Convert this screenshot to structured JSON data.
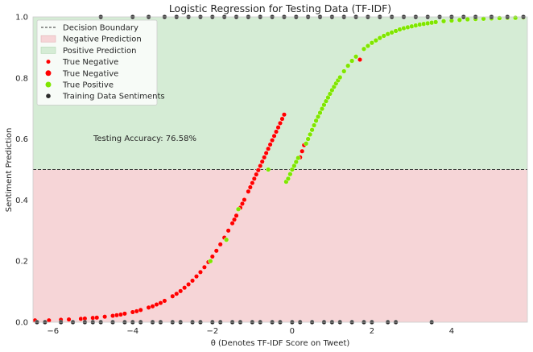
{
  "chart_data": {
    "type": "scatter",
    "title": "Logistic Regression for Testing Data (TF-IDF)",
    "xlabel": "θ (Denotes TF-IDF Score on Tweet)",
    "ylabel": "Sentiment Prediction",
    "xlim": [
      -6.5,
      5.9
    ],
    "ylim": [
      0,
      1.0
    ],
    "xticks": [
      -6,
      -4,
      -2,
      0,
      2,
      4
    ],
    "xtick_labels": [
      "−6",
      "−4",
      "−2",
      "0",
      "2",
      "4"
    ],
    "yticks": [
      0.0,
      0.2,
      0.4,
      0.6,
      0.8,
      1.0
    ],
    "ytick_labels": [
      "0.0",
      "0.2",
      "0.4",
      "0.6",
      "0.8",
      "1.0"
    ],
    "decision_boundary": 0.5,
    "grid": false,
    "legend_placement": "top-left",
    "annotation": "Testing Accuracy: 76.58%",
    "colors": {
      "negative_region": "#f6d5d7",
      "positive_region": "#d5ecd5",
      "true_negative": "#ff0000",
      "true_positive": "#7fe600",
      "training": "#2b2b2b",
      "boundary": "#333333"
    },
    "legend": [
      {
        "label": "Decision Boundary",
        "kind": "dashed-line"
      },
      {
        "label": "Negative Prediction",
        "kind": "patch-negative"
      },
      {
        "label": "Positive Prediction",
        "kind": "patch-positive"
      },
      {
        "label": "True Negative",
        "kind": "dot-small-red"
      },
      {
        "label": "True Negative",
        "kind": "dot-red"
      },
      {
        "label": "True Positive",
        "kind": "dot-green"
      },
      {
        "label": "Training Data Sentiments",
        "kind": "dot-dark"
      }
    ],
    "series": [
      {
        "role": "true_negative",
        "x": [
          -6.45,
          -6.1,
          -5.8,
          -5.6,
          -5.3,
          -5.2,
          -5.0,
          -4.9,
          -4.7,
          -4.5,
          -4.4,
          -4.3,
          -4.2,
          -4.0,
          -3.9,
          -3.8,
          -3.6,
          -3.5,
          -3.4,
          -3.3,
          -3.2,
          -3.0,
          -2.9,
          -2.8,
          -2.7,
          -2.6,
          -2.5,
          -2.4,
          -2.3,
          -2.2,
          -2.1,
          -2.0,
          -1.9,
          -1.8,
          -1.7,
          -1.6,
          -1.5,
          -1.45,
          -1.4,
          -1.3,
          -1.25,
          -1.2,
          -1.1,
          -1.05,
          -1.0,
          -0.95,
          -0.9,
          -0.85,
          -0.8,
          -0.75,
          -0.7,
          -0.65,
          -0.6,
          -0.55,
          -0.5,
          -0.45,
          -0.4,
          -0.35,
          -0.3,
          -0.25,
          -0.2,
          0.2,
          0.25,
          0.3,
          1.7
        ],
        "y": [
          0.006,
          0.006,
          0.008,
          0.009,
          0.011,
          0.012,
          0.014,
          0.015,
          0.018,
          0.021,
          0.023,
          0.025,
          0.028,
          0.033,
          0.036,
          0.04,
          0.048,
          0.052,
          0.058,
          0.063,
          0.07,
          0.085,
          0.093,
          0.102,
          0.113,
          0.124,
          0.136,
          0.15,
          0.164,
          0.18,
          0.197,
          0.215,
          0.234,
          0.255,
          0.277,
          0.3,
          0.324,
          0.336,
          0.349,
          0.375,
          0.388,
          0.401,
          0.428,
          0.442,
          0.456,
          0.47,
          0.484,
          0.498,
          0.512,
          0.526,
          0.54,
          0.554,
          0.568,
          0.582,
          0.596,
          0.61,
          0.624,
          0.638,
          0.652,
          0.666,
          0.68,
          0.54,
          0.56,
          0.58,
          0.86
        ]
      },
      {
        "role": "true_positive",
        "x": [
          -2.05,
          -1.65,
          -1.35,
          -0.6,
          -0.15,
          -0.1,
          -0.05,
          0.0,
          0.05,
          0.1,
          0.15,
          0.35,
          0.4,
          0.45,
          0.5,
          0.55,
          0.6,
          0.65,
          0.7,
          0.75,
          0.8,
          0.85,
          0.9,
          0.95,
          1.0,
          1.05,
          1.1,
          1.15,
          1.2,
          1.3,
          1.4,
          1.5,
          1.6,
          1.8,
          1.9,
          2.0,
          2.1,
          2.2,
          2.3,
          2.4,
          2.5,
          2.6,
          2.7,
          2.8,
          2.9,
          3.0,
          3.1,
          3.2,
          3.3,
          3.4,
          3.5,
          3.6,
          3.8,
          4.0,
          4.2,
          4.4,
          4.6,
          4.8,
          5.0,
          5.2,
          5.4,
          5.6,
          5.8
        ],
        "y": [
          0.2,
          0.27,
          0.37,
          0.5,
          0.46,
          0.47,
          0.485,
          0.5,
          0.512,
          0.525,
          0.538,
          0.585,
          0.6,
          0.615,
          0.63,
          0.645,
          0.66,
          0.673,
          0.686,
          0.699,
          0.712,
          0.724,
          0.736,
          0.748,
          0.76,
          0.771,
          0.782,
          0.792,
          0.802,
          0.822,
          0.84,
          0.856,
          0.87,
          0.895,
          0.905,
          0.915,
          0.923,
          0.931,
          0.938,
          0.944,
          0.949,
          0.954,
          0.959,
          0.963,
          0.966,
          0.969,
          0.972,
          0.975,
          0.977,
          0.979,
          0.981,
          0.983,
          0.986,
          0.988,
          0.99,
          0.992,
          0.993,
          0.994,
          0.995,
          0.996,
          0.997,
          0.997,
          0.998
        ]
      },
      {
        "role": "training",
        "x": [
          -6.4,
          -6.2,
          -5.8,
          -5.5,
          -5.2,
          -5.0,
          -4.8,
          -4.5,
          -4.2,
          -4.0,
          -3.8,
          -3.5,
          -3.3,
          -3.0,
          -2.8,
          -2.5,
          -2.3,
          -2.0,
          -1.8,
          -1.5,
          -1.3,
          -1.0,
          -0.8,
          -0.5,
          -0.3,
          0.0,
          0.2,
          0.5,
          0.8,
          1.0,
          1.2,
          1.5,
          1.8,
          2.0,
          2.4,
          2.6,
          3.5,
          -4.8,
          -4.0,
          -3.6,
          -3.2,
          -2.9,
          -2.6,
          -2.3,
          -2.0,
          -1.7,
          -1.4,
          -1.1,
          -0.8,
          -0.5,
          -0.2,
          0.1,
          0.4,
          0.7,
          1.0,
          1.3,
          1.6,
          1.9,
          2.2,
          2.5,
          2.8,
          3.1,
          3.4,
          3.7,
          4.0,
          4.3,
          4.6,
          5.0,
          5.4,
          5.8
        ],
        "y": [
          0,
          0,
          0,
          0,
          0,
          0,
          0,
          0,
          0,
          0,
          0,
          0,
          0,
          0,
          0,
          0,
          0,
          0,
          0,
          0,
          0,
          0,
          0,
          0,
          0,
          0,
          0,
          0,
          0,
          0,
          0,
          0,
          0,
          0,
          0,
          0,
          0,
          1,
          1,
          1,
          1,
          1,
          1,
          1,
          1,
          1,
          1,
          1,
          1,
          1,
          1,
          1,
          1,
          1,
          1,
          1,
          1,
          1,
          1,
          1,
          1,
          1,
          1,
          1,
          1,
          1,
          1,
          1,
          1,
          1
        ]
      }
    ]
  }
}
